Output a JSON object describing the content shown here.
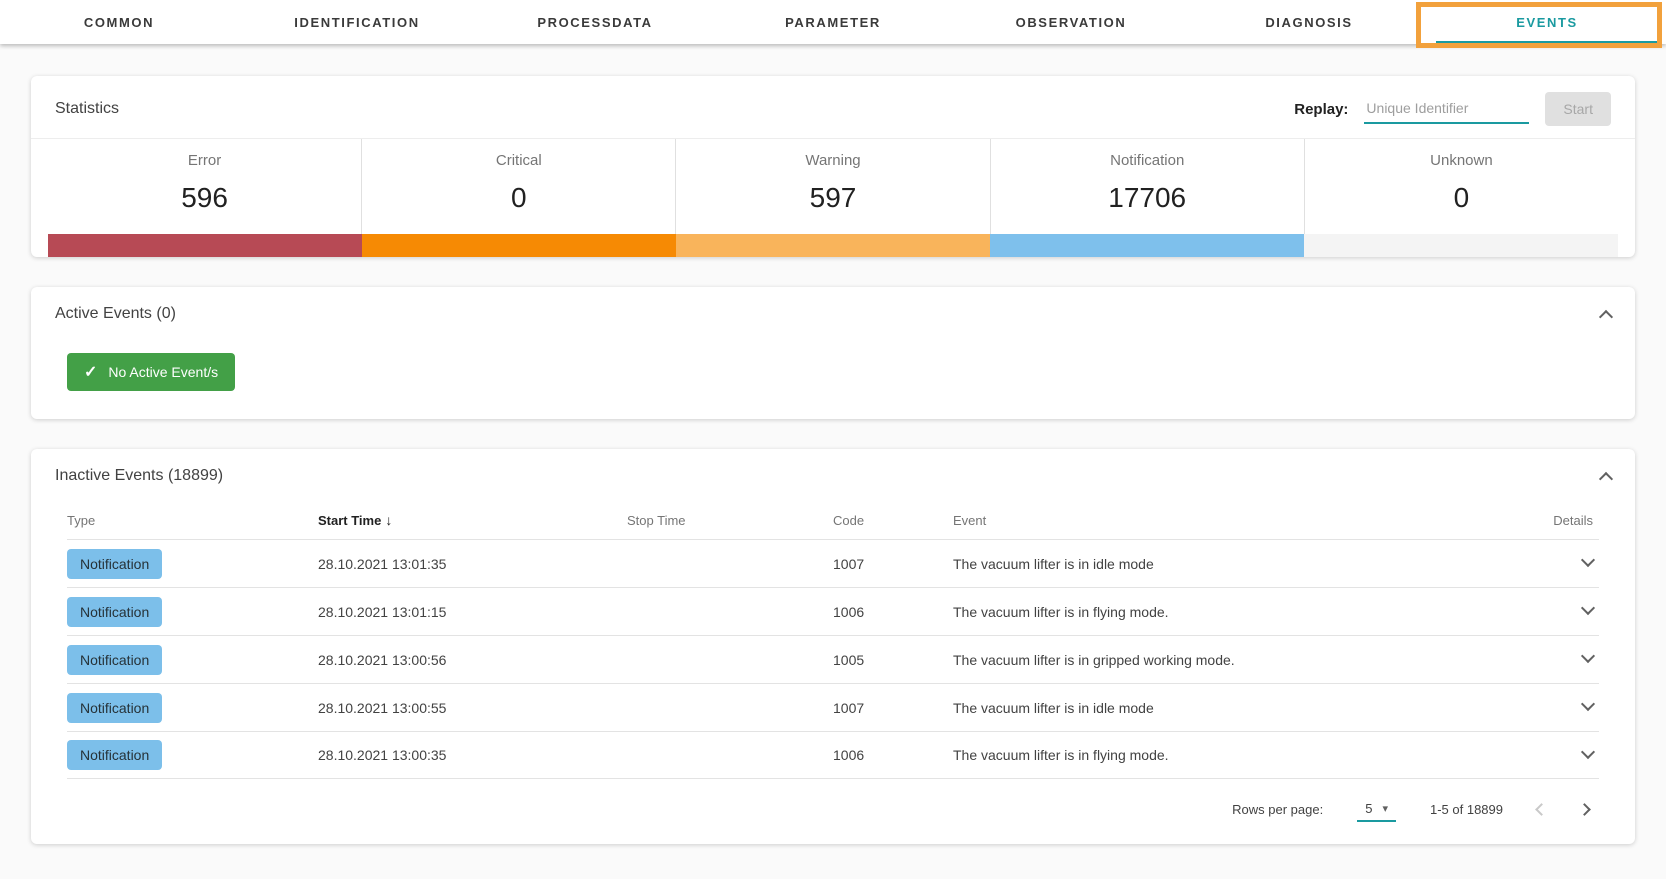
{
  "theme": {
    "accent_teal": "#1a9aa0",
    "highlight_orange": "#f2a13c",
    "page_background": "#fafafa"
  },
  "icons": {
    "check": "✓",
    "sort_descending": "↓",
    "dropdown_arrow": "▾"
  },
  "tabs": {
    "items": [
      {
        "label": "COMMON"
      },
      {
        "label": "IDENTIFICATION"
      },
      {
        "label": "PROCESSDATA"
      },
      {
        "label": "PARAMETER"
      },
      {
        "label": "OBSERVATION"
      },
      {
        "label": "DIAGNOSIS"
      },
      {
        "label": "EVENTS",
        "active": true
      }
    ]
  },
  "statistics": {
    "title": "Statistics",
    "replay_label": "Replay:",
    "replay_placeholder": "Unique Identifier",
    "replay_value": "",
    "start_button": "Start",
    "stats": [
      {
        "label": "Error",
        "value": "596",
        "color": "#b74a55"
      },
      {
        "label": "Critical",
        "value": "0",
        "color": "#f68a04"
      },
      {
        "label": "Warning",
        "value": "597",
        "color": "#f9b45b"
      },
      {
        "label": "Notification",
        "value": "17706",
        "color": "#7ec0ec"
      },
      {
        "label": "Unknown",
        "value": "0",
        "color": "#f4f4f4"
      }
    ]
  },
  "active_events": {
    "title": "Active Events (0)",
    "badge_label": "No Active Event/s",
    "badge_color": "#43a047"
  },
  "inactive_events": {
    "title": "Inactive Events (18899)",
    "columns": {
      "type": "Type",
      "start_time": "Start Time",
      "stop_time": "Stop Time",
      "code": "Code",
      "event": "Event",
      "details": "Details"
    },
    "sorted_by": "Start Time descending",
    "type_badge_color": "#7cbfea",
    "rows": [
      {
        "type": "Notification",
        "start_time": "28.10.2021 13:01:35",
        "stop_time": "",
        "code": "1007",
        "event": "The vacuum lifter is in idle mode"
      },
      {
        "type": "Notification",
        "start_time": "28.10.2021 13:01:15",
        "stop_time": "",
        "code": "1006",
        "event": "The vacuum lifter is in flying mode."
      },
      {
        "type": "Notification",
        "start_time": "28.10.2021 13:00:56",
        "stop_time": "",
        "code": "1005",
        "event": "The vacuum lifter is in gripped working mode."
      },
      {
        "type": "Notification",
        "start_time": "28.10.2021 13:00:55",
        "stop_time": "",
        "code": "1007",
        "event": "The vacuum lifter is in idle mode"
      },
      {
        "type": "Notification",
        "start_time": "28.10.2021 13:00:35",
        "stop_time": "",
        "code": "1006",
        "event": "The vacuum lifter is in flying mode."
      }
    ],
    "pagination": {
      "rows_per_page_label": "Rows per page:",
      "rows_per_page_value": "5",
      "range_label": "1-5 of 18899"
    }
  }
}
